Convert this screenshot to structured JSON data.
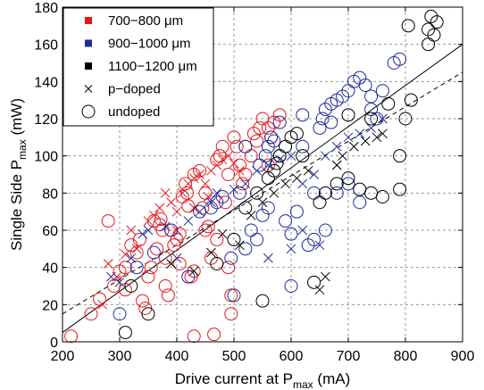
{
  "chart_data": {
    "type": "scatter",
    "xlabel": {
      "main": "Drive current at P",
      "sub": "max",
      "suffix": " (mA)"
    },
    "ylabel": {
      "main": "Single Side P",
      "sub": "max",
      "suffix": " (mW)"
    },
    "xlim": [
      200,
      900
    ],
    "ylim": [
      0,
      180
    ],
    "xticks": [
      200,
      300,
      400,
      500,
      600,
      700,
      800,
      900
    ],
    "yticks": [
      0,
      20,
      40,
      60,
      80,
      100,
      120,
      140,
      160,
      180
    ],
    "grid": true,
    "legend_position": "top-left",
    "legend": [
      {
        "label": "700−800 μm",
        "marker": "square",
        "color": "#e8151b"
      },
      {
        "label": "900−1000 μm",
        "marker": "square",
        "color": "#1f2a9c"
      },
      {
        "label": "1100−1200 μm",
        "marker": "square",
        "color": "#000000"
      },
      {
        "label": "p−doped",
        "marker": "x",
        "color": "#000000"
      },
      {
        "label": "undoped",
        "marker": "circle",
        "color": "#000000"
      }
    ],
    "colors": {
      "red": "#e8151b",
      "blue": "#1f2a9c",
      "black": "#000000"
    },
    "series": [
      {
        "name": "700−800 μm",
        "doping": "undoped",
        "color": "red",
        "points": [
          [
            215,
            3
          ],
          [
            250,
            15
          ],
          [
            265,
            23
          ],
          [
            280,
            65
          ],
          [
            290,
            30
          ],
          [
            300,
            38
          ],
          [
            310,
            40
          ],
          [
            310,
            28
          ],
          [
            320,
            52
          ],
          [
            330,
            48
          ],
          [
            335,
            55
          ],
          [
            340,
            22
          ],
          [
            345,
            18
          ],
          [
            350,
            35
          ],
          [
            355,
            40
          ],
          [
            360,
            65
          ],
          [
            365,
            50
          ],
          [
            370,
            63
          ],
          [
            372,
            66
          ],
          [
            375,
            60
          ],
          [
            380,
            45
          ],
          [
            380,
            30
          ],
          [
            385,
            25
          ],
          [
            390,
            60
          ],
          [
            395,
            52
          ],
          [
            400,
            55
          ],
          [
            405,
            58
          ],
          [
            410,
            78
          ],
          [
            415,
            85
          ],
          [
            418,
            80
          ],
          [
            420,
            73
          ],
          [
            425,
            35
          ],
          [
            430,
            3
          ],
          [
            430,
            90
          ],
          [
            440,
            92
          ],
          [
            445,
            72
          ],
          [
            450,
            80
          ],
          [
            455,
            62
          ],
          [
            460,
            45
          ],
          [
            465,
            4
          ],
          [
            470,
            98
          ],
          [
            475,
            100
          ],
          [
            480,
            105
          ],
          [
            485,
            75
          ],
          [
            490,
            90
          ],
          [
            495,
            25
          ],
          [
            495,
            15
          ],
          [
            500,
            110
          ],
          [
            505,
            105
          ],
          [
            510,
            95
          ],
          [
            515,
            85
          ],
          [
            520,
            90
          ],
          [
            530,
            100
          ],
          [
            535,
            112
          ],
          [
            540,
            108
          ],
          [
            545,
            115
          ],
          [
            550,
            120
          ],
          [
            560,
            95
          ],
          [
            565,
            110
          ],
          [
            570,
            118
          ],
          [
            580,
            122
          ],
          [
            490,
            40
          ],
          [
            470,
            55
          ],
          [
            430,
            38
          ],
          [
            405,
            42
          ],
          [
            450,
            60
          ],
          [
            520,
            105
          ],
          [
            560,
            115
          ]
        ]
      },
      {
        "name": "700−800 μm",
        "doping": "p−doped",
        "color": "red",
        "points": [
          [
            270,
            20
          ],
          [
            280,
            42
          ],
          [
            295,
            35
          ],
          [
            310,
            47
          ],
          [
            320,
            60
          ],
          [
            330,
            50
          ],
          [
            350,
            65
          ],
          [
            360,
            68
          ],
          [
            370,
            72
          ],
          [
            380,
            80
          ],
          [
            390,
            75
          ],
          [
            400,
            70
          ],
          [
            410,
            80
          ],
          [
            420,
            85
          ],
          [
            430,
            88
          ],
          [
            440,
            90
          ],
          [
            450,
            85
          ],
          [
            460,
            92
          ],
          [
            470,
            95
          ],
          [
            480,
            98
          ],
          [
            490,
            100
          ],
          [
            500,
            96
          ],
          [
            510,
            92
          ],
          [
            400,
            60
          ],
          [
            430,
            72
          ],
          [
            455,
            78
          ]
        ]
      },
      {
        "name": "900−1000 μm",
        "doping": "undoped",
        "color": "blue",
        "points": [
          [
            300,
            15
          ],
          [
            330,
            40
          ],
          [
            360,
            48
          ],
          [
            390,
            60
          ],
          [
            420,
            35
          ],
          [
            440,
            70
          ],
          [
            460,
            72
          ],
          [
            470,
            75
          ],
          [
            480,
            78
          ],
          [
            495,
            45
          ],
          [
            500,
            25
          ],
          [
            510,
            80
          ],
          [
            520,
            105
          ],
          [
            530,
            60
          ],
          [
            540,
            55
          ],
          [
            545,
            95
          ],
          [
            550,
            68
          ],
          [
            555,
            100
          ],
          [
            560,
            105
          ],
          [
            565,
            110
          ],
          [
            570,
            108
          ],
          [
            580,
            100
          ],
          [
            590,
            65
          ],
          [
            600,
            58
          ],
          [
            610,
            70
          ],
          [
            620,
            105
          ],
          [
            630,
            52
          ],
          [
            640,
            80
          ],
          [
            650,
            115
          ],
          [
            655,
            120
          ],
          [
            660,
            125
          ],
          [
            670,
            128
          ],
          [
            680,
            130
          ],
          [
            690,
            132
          ],
          [
            700,
            135
          ],
          [
            710,
            140
          ],
          [
            720,
            142
          ],
          [
            730,
            138
          ],
          [
            740,
            125
          ],
          [
            750,
            120
          ],
          [
            760,
            135
          ],
          [
            780,
            150
          ],
          [
            790,
            152
          ],
          [
            680,
            80
          ],
          [
            700,
            85
          ],
          [
            720,
            75
          ],
          [
            640,
            55
          ],
          [
            660,
            60
          ],
          [
            600,
            30
          ],
          [
            560,
            72
          ],
          [
            520,
            50
          ],
          [
            580,
            118
          ],
          [
            620,
            122
          ],
          [
            670,
            118
          ],
          [
            740,
            132
          ]
        ]
      },
      {
        "name": "900−1000 μm",
        "doping": "p−doped",
        "color": "blue",
        "points": [
          [
            285,
            35
          ],
          [
            300,
            32
          ],
          [
            320,
            45
          ],
          [
            340,
            58
          ],
          [
            350,
            60
          ],
          [
            380,
            62
          ],
          [
            400,
            45
          ],
          [
            420,
            65
          ],
          [
            440,
            70
          ],
          [
            460,
            75
          ],
          [
            470,
            80
          ],
          [
            500,
            82
          ],
          [
            520,
            85
          ],
          [
            540,
            92
          ],
          [
            560,
            95
          ],
          [
            580,
            98
          ],
          [
            600,
            100
          ],
          [
            620,
            85
          ],
          [
            640,
            90
          ],
          [
            660,
            100
          ],
          [
            680,
            105
          ],
          [
            700,
            110
          ],
          [
            720,
            112
          ],
          [
            740,
            115
          ],
          [
            760,
            120
          ],
          [
            600,
            50
          ],
          [
            620,
            60
          ],
          [
            650,
            52
          ],
          [
            680,
            95
          ],
          [
            560,
            45
          ]
        ]
      },
      {
        "name": "1100−1200 μm",
        "doping": "undoped",
        "color": "black",
        "points": [
          [
            310,
            5
          ],
          [
            320,
            30
          ],
          [
            350,
            15
          ],
          [
            470,
            42
          ],
          [
            500,
            55
          ],
          [
            520,
            72
          ],
          [
            540,
            80
          ],
          [
            550,
            22
          ],
          [
            560,
            88
          ],
          [
            570,
            92
          ],
          [
            575,
            96
          ],
          [
            580,
            100
          ],
          [
            590,
            105
          ],
          [
            600,
            110
          ],
          [
            610,
            112
          ],
          [
            620,
            100
          ],
          [
            640,
            32
          ],
          [
            650,
            75
          ],
          [
            660,
            80
          ],
          [
            680,
            85
          ],
          [
            700,
            88
          ],
          [
            720,
            82
          ],
          [
            740,
            80
          ],
          [
            760,
            78
          ],
          [
            790,
            100
          ],
          [
            790,
            82
          ],
          [
            800,
            120
          ],
          [
            810,
            130
          ],
          [
            805,
            170
          ],
          [
            840,
            160
          ],
          [
            845,
            175
          ],
          [
            850,
            165
          ],
          [
            855,
            172
          ],
          [
            840,
            168
          ],
          [
            700,
            122
          ],
          [
            740,
            120
          ],
          [
            770,
            128
          ]
        ]
      },
      {
        "name": "1100−1200 μm",
        "doping": "p−doped",
        "color": "black",
        "points": [
          [
            390,
            42
          ],
          [
            430,
            38
          ],
          [
            460,
            48
          ],
          [
            480,
            58
          ],
          [
            510,
            52
          ],
          [
            530,
            68
          ],
          [
            550,
            75
          ],
          [
            570,
            80
          ],
          [
            590,
            85
          ],
          [
            610,
            88
          ],
          [
            630,
            92
          ],
          [
            650,
            28
          ],
          [
            660,
            35
          ],
          [
            680,
            95
          ],
          [
            690,
            100
          ],
          [
            710,
            105
          ],
          [
            730,
            108
          ],
          [
            750,
            110
          ],
          [
            760,
            112
          ]
        ]
      }
    ],
    "fit_lines": [
      {
        "style": "solid",
        "color": "#000000",
        "from": [
          200,
          5
        ],
        "to": [
          900,
          160
        ]
      },
      {
        "style": "dashed",
        "color": "#000000",
        "from": [
          200,
          15
        ],
        "to": [
          900,
          145
        ]
      }
    ]
  }
}
